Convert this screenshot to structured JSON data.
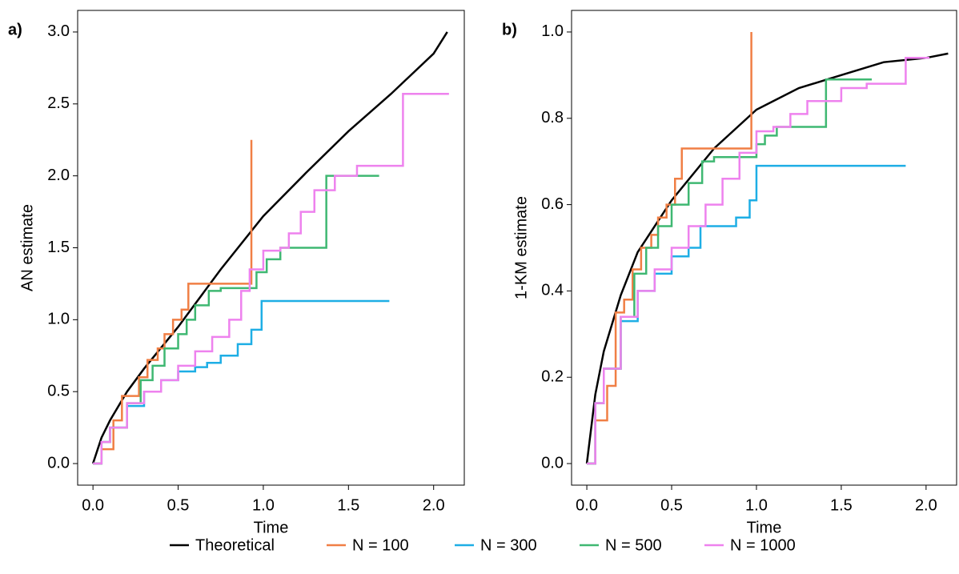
{
  "chart_data": [
    {
      "type": "line",
      "label": "a)",
      "xlabel": "Time",
      "ylabel": "AN estimate",
      "xlim": [
        -0.09,
        2.18
      ],
      "ylim": [
        -0.15,
        3.15
      ],
      "xticks": [
        {
          "value": 0,
          "label": "0.0"
        },
        {
          "value": 0.5,
          "label": "0.5"
        },
        {
          "value": 1,
          "label": "1.0"
        },
        {
          "value": 1.5,
          "label": "1.5"
        },
        {
          "value": 2,
          "label": "2.0"
        }
      ],
      "yticks": [
        {
          "value": 0,
          "label": "0.0"
        },
        {
          "value": 0.5,
          "label": "0.5"
        },
        {
          "value": 1,
          "label": "1.0"
        },
        {
          "value": 1.5,
          "label": "1.5"
        },
        {
          "value": 2,
          "label": "2.0"
        },
        {
          "value": 2.5,
          "label": "2.5"
        },
        {
          "value": 3,
          "label": "3.0"
        }
      ],
      "series": [
        {
          "name": "Theoretical",
          "color": "#000000",
          "x": [
            0,
            0.05,
            0.1,
            0.2,
            0.3,
            0.5,
            0.75,
            1.0,
            1.25,
            1.5,
            1.75,
            2.0,
            2.08
          ],
          "values": [
            0,
            0.18,
            0.3,
            0.5,
            0.66,
            0.95,
            1.35,
            1.72,
            2.02,
            2.31,
            2.57,
            2.85,
            3.0
          ]
        },
        {
          "name": "N = 100",
          "color": "#f07f45",
          "drawstyle": "steps-post",
          "x": [
            0,
            0.05,
            0.12,
            0.17,
            0.27,
            0.32,
            0.38,
            0.42,
            0.47,
            0.52,
            0.56,
            0.93
          ],
          "values": [
            0,
            0.1,
            0.3,
            0.47,
            0.6,
            0.72,
            0.8,
            0.9,
            1.0,
            1.07,
            1.25,
            2.25
          ]
        },
        {
          "name": "N = 300",
          "color": "#1eaee5",
          "drawstyle": "steps-post",
          "x": [
            0,
            0.05,
            0.1,
            0.2,
            0.3,
            0.4,
            0.5,
            0.6,
            0.67,
            0.75,
            0.85,
            0.93,
            0.99,
            1.74
          ],
          "values": [
            0,
            0.15,
            0.25,
            0.4,
            0.5,
            0.58,
            0.64,
            0.67,
            0.7,
            0.75,
            0.83,
            0.93,
            1.13,
            1.13
          ]
        },
        {
          "name": "N = 500",
          "color": "#3fb872",
          "drawstyle": "steps-post",
          "x": [
            0,
            0.05,
            0.1,
            0.2,
            0.28,
            0.35,
            0.42,
            0.5,
            0.55,
            0.6,
            0.68,
            0.75,
            0.9,
            0.96,
            1.02,
            1.1,
            1.37,
            1.68
          ],
          "values": [
            0,
            0.15,
            0.25,
            0.42,
            0.58,
            0.68,
            0.8,
            0.9,
            1.0,
            1.1,
            1.2,
            1.22,
            1.22,
            1.33,
            1.42,
            1.5,
            2.0,
            2.0
          ]
        },
        {
          "name": "N = 1000",
          "color": "#ee82ee",
          "drawstyle": "steps-post",
          "x": [
            0,
            0.05,
            0.1,
            0.2,
            0.3,
            0.4,
            0.5,
            0.6,
            0.7,
            0.8,
            0.87,
            0.92,
            1.0,
            1.1,
            1.15,
            1.22,
            1.3,
            1.42,
            1.55,
            1.82,
            2.09
          ],
          "values": [
            0,
            0.15,
            0.25,
            0.42,
            0.5,
            0.58,
            0.68,
            0.78,
            0.88,
            1.0,
            1.2,
            1.35,
            1.48,
            1.5,
            1.6,
            1.75,
            1.9,
            2.0,
            2.07,
            2.57,
            2.57
          ]
        }
      ]
    },
    {
      "type": "line",
      "label": "b)",
      "xlabel": "Time",
      "ylabel": "1-KM estimate",
      "xlim": [
        -0.09,
        2.18
      ],
      "ylim": [
        -0.05,
        1.05
      ],
      "xticks": [
        {
          "value": 0,
          "label": "0.0"
        },
        {
          "value": 0.5,
          "label": "0.5"
        },
        {
          "value": 1,
          "label": "1.0"
        },
        {
          "value": 1.5,
          "label": "1.5"
        },
        {
          "value": 2,
          "label": "2.0"
        }
      ],
      "yticks": [
        {
          "value": 0,
          "label": "0.0"
        },
        {
          "value": 0.2,
          "label": "0.2"
        },
        {
          "value": 0.4,
          "label": "0.4"
        },
        {
          "value": 0.6,
          "label": "0.6"
        },
        {
          "value": 0.8,
          "label": "0.8"
        },
        {
          "value": 1,
          "label": "1.0"
        }
      ],
      "series": [
        {
          "color": "#000000",
          "x": [
            0,
            0.05,
            0.1,
            0.2,
            0.3,
            0.5,
            0.75,
            1.0,
            1.25,
            1.5,
            1.75,
            2.0,
            2.13
          ],
          "values": [
            0,
            0.16,
            0.26,
            0.39,
            0.49,
            0.61,
            0.73,
            0.82,
            0.87,
            0.9,
            0.93,
            0.94,
            0.95
          ]
        },
        {
          "color": "#f07f45",
          "drawstyle": "steps-post",
          "x": [
            0,
            0.05,
            0.12,
            0.17,
            0.22,
            0.27,
            0.32,
            0.38,
            0.42,
            0.47,
            0.52,
            0.56,
            0.97
          ],
          "values": [
            0,
            0.1,
            0.18,
            0.35,
            0.38,
            0.45,
            0.5,
            0.53,
            0.57,
            0.6,
            0.66,
            0.73,
            1.0
          ]
        },
        {
          "color": "#1eaee5",
          "drawstyle": "steps-post",
          "x": [
            0,
            0.05,
            0.1,
            0.2,
            0.3,
            0.4,
            0.5,
            0.6,
            0.67,
            0.88,
            0.96,
            1.0,
            1.88
          ],
          "values": [
            0,
            0.14,
            0.22,
            0.33,
            0.4,
            0.44,
            0.48,
            0.5,
            0.55,
            0.57,
            0.61,
            0.69,
            0.69
          ]
        },
        {
          "color": "#3fb872",
          "drawstyle": "steps-post",
          "x": [
            0,
            0.05,
            0.1,
            0.2,
            0.28,
            0.35,
            0.42,
            0.5,
            0.6,
            0.68,
            0.75,
            0.9,
            1.0,
            1.05,
            1.12,
            1.41,
            1.68
          ],
          "values": [
            0,
            0.14,
            0.22,
            0.34,
            0.44,
            0.5,
            0.55,
            0.6,
            0.65,
            0.7,
            0.71,
            0.71,
            0.74,
            0.76,
            0.78,
            0.89,
            0.89
          ]
        },
        {
          "color": "#ee82ee",
          "drawstyle": "steps-post",
          "x": [
            0,
            0.05,
            0.1,
            0.2,
            0.3,
            0.4,
            0.5,
            0.6,
            0.7,
            0.8,
            0.9,
            1.0,
            1.1,
            1.2,
            1.3,
            1.5,
            1.65,
            1.88,
            2.02
          ],
          "values": [
            0,
            0.14,
            0.22,
            0.34,
            0.4,
            0.45,
            0.5,
            0.55,
            0.6,
            0.66,
            0.72,
            0.77,
            0.78,
            0.81,
            0.84,
            0.87,
            0.88,
            0.94,
            0.94
          ]
        }
      ]
    }
  ]
}
